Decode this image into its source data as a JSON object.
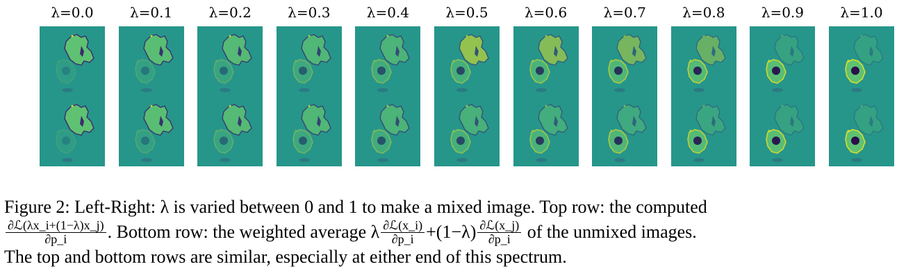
{
  "panels": [
    {
      "lambda_label": "λ=0.0",
      "lambda": 0.0
    },
    {
      "lambda_label": "λ=0.1",
      "lambda": 0.1
    },
    {
      "lambda_label": "λ=0.2",
      "lambda": 0.2
    },
    {
      "lambda_label": "λ=0.3",
      "lambda": 0.3
    },
    {
      "lambda_label": "λ=0.4",
      "lambda": 0.4
    },
    {
      "lambda_label": "λ=0.5",
      "lambda": 0.5
    },
    {
      "lambda_label": "λ=0.6",
      "lambda": 0.6
    },
    {
      "lambda_label": "λ=0.7",
      "lambda": 0.7
    },
    {
      "lambda_label": "λ=0.8",
      "lambda": 0.8
    },
    {
      "lambda_label": "λ=0.9",
      "lambda": 0.9
    },
    {
      "lambda_label": "λ=1.0",
      "lambda": 1.0
    }
  ],
  "colors": {
    "background": "#26968a",
    "dark": "#3b2a6e",
    "bright": "#d9de2a",
    "light": "#5ec272",
    "hole": "#2a0f4a"
  },
  "caption": {
    "line1": "Figure 2: Left-Right: λ is varied between 0 and 1 to make a mixed image. Top row: the computed",
    "frac1_num": "∂ℒ(λx_i+(1−λ)x_j)",
    "frac1_den": "∂p_i",
    "line2_a": ". Bottom row: the weighted average λ",
    "frac2_num": "∂ℒ(x_i)",
    "frac2_den": "∂p_i",
    "line2_b": "+(1−λ)",
    "frac3_num": "∂ℒ(x_j)",
    "frac3_den": "∂p_i",
    "line2_c": " of the unmixed images.",
    "line3": "The top and bottom rows are similar, especially at either end of this spectrum."
  }
}
